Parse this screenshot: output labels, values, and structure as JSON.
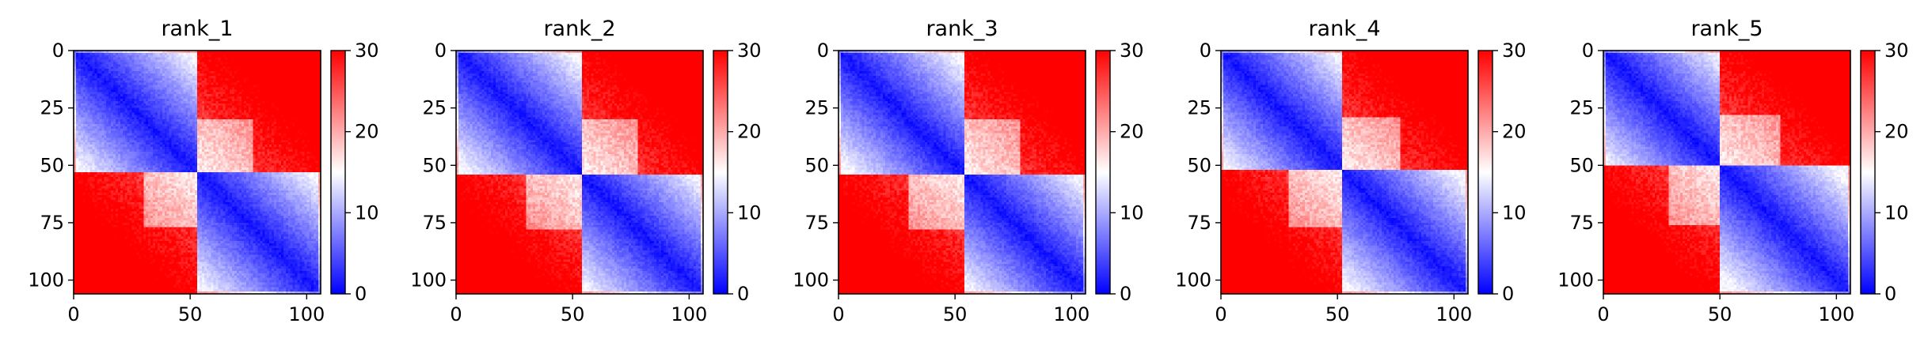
{
  "chart_data": [
    {
      "type": "heatmap",
      "title": "rank_1",
      "x_ticks": [
        "0",
        "50",
        "100"
      ],
      "y_ticks": [
        "0",
        "25",
        "50",
        "75",
        "100"
      ],
      "x_range": [
        0,
        106
      ],
      "y_range": [
        0,
        106
      ],
      "colorbar": {
        "ticks": [
          "0",
          "10",
          "20",
          "30"
        ],
        "range": [
          0,
          30
        ],
        "colormap": [
          "#0000ff",
          "#ffffff",
          "#ff0000"
        ]
      },
      "values_description": "pairwise distance matrix, two domains split near index 53",
      "domains": [
        0,
        53,
        106
      ]
    },
    {
      "type": "heatmap",
      "title": "rank_2",
      "x_ticks": [
        "0",
        "50",
        "100"
      ],
      "y_ticks": [
        "0",
        "25",
        "50",
        "75",
        "100"
      ],
      "x_range": [
        0,
        106
      ],
      "y_range": [
        0,
        106
      ],
      "colorbar": {
        "ticks": [
          "0",
          "10",
          "20",
          "30"
        ],
        "range": [
          0,
          30
        ],
        "colormap": [
          "#0000ff",
          "#ffffff",
          "#ff0000"
        ]
      },
      "domains": [
        0,
        54,
        106
      ]
    },
    {
      "type": "heatmap",
      "title": "rank_3",
      "x_ticks": [
        "0",
        "50",
        "100"
      ],
      "y_ticks": [
        "0",
        "25",
        "50",
        "75",
        "100"
      ],
      "x_range": [
        0,
        106
      ],
      "y_range": [
        0,
        106
      ],
      "colorbar": {
        "ticks": [
          "0",
          "10",
          "20",
          "30"
        ],
        "range": [
          0,
          30
        ],
        "colormap": [
          "#0000ff",
          "#ffffff",
          "#ff0000"
        ]
      },
      "domains": [
        0,
        54,
        106
      ]
    },
    {
      "type": "heatmap",
      "title": "rank_4",
      "x_ticks": [
        "0",
        "50",
        "100"
      ],
      "y_ticks": [
        "0",
        "25",
        "50",
        "75",
        "100"
      ],
      "x_range": [
        0,
        106
      ],
      "y_range": [
        0,
        106
      ],
      "colorbar": {
        "ticks": [
          "0",
          "10",
          "20",
          "30"
        ],
        "range": [
          0,
          30
        ],
        "colormap": [
          "#0000ff",
          "#ffffff",
          "#ff0000"
        ]
      },
      "domains": [
        0,
        52,
        106
      ]
    },
    {
      "type": "heatmap",
      "title": "rank_5",
      "x_ticks": [
        "0",
        "50",
        "100"
      ],
      "y_ticks": [
        "0",
        "25",
        "50",
        "75",
        "100"
      ],
      "x_range": [
        0,
        106
      ],
      "y_range": [
        0,
        106
      ],
      "colorbar": {
        "ticks": [
          "0",
          "10",
          "20",
          "30"
        ],
        "range": [
          0,
          30
        ],
        "colormap": [
          "#0000ff",
          "#ffffff",
          "#ff0000"
        ]
      },
      "domains": [
        0,
        50,
        106
      ]
    }
  ]
}
